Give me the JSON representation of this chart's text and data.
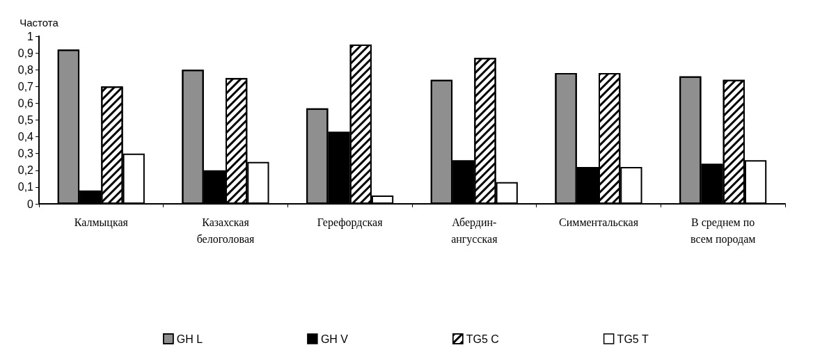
{
  "chart_data": {
    "type": "bar",
    "ylabel": "Частота",
    "categories": [
      "Калмыцкая",
      "Казахская белоголовая",
      "Герефордская",
      "Абердин-ангусская",
      "Симментальская",
      "В среднем по всем породам"
    ],
    "series": [
      {
        "name": "GH L",
        "color": "#ffffff",
        "values": [
          0.92,
          0.8,
          0.57,
          0.74,
          0.78,
          0.76
        ]
      },
      {
        "name": "GH V",
        "color": "#000000",
        "values": [
          0.08,
          0.2,
          0.43,
          0.26,
          0.22,
          0.24
        ]
      },
      {
        "name": "TG5 C",
        "color": "#ffffff",
        "values": [
          0.7,
          0.75,
          0.95,
          0.87,
          0.78,
          0.74
        ]
      },
      {
        "name": "TG5 T",
        "color": "#ffffff",
        "values": [
          0.3,
          0.25,
          0.05,
          0.13,
          0.22,
          0.26
        ]
      }
    ],
    "ylim": [
      0,
      1
    ],
    "yticks": [
      0,
      {
        "value": 0.1,
        "label": "0,1"
      },
      {
        "value": 0.2,
        "label": "0,2"
      },
      {
        "value": 0.3,
        "label": "0,3"
      },
      {
        "value": 0.4,
        "label": "0,4"
      },
      {
        "value": 0.5,
        "label": "0,5"
      },
      {
        "value": 0.6,
        "label": "0,6"
      },
      {
        "value": 0.7,
        "label": "0,7"
      },
      {
        "value": 0.8,
        "label": "0,8"
      },
      {
        "value": 0.9,
        "label": "0,9"
      },
      1
    ],
    "grid": false,
    "legend": "bottom"
  }
}
